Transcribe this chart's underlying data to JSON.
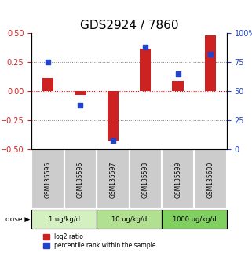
{
  "title": "GDS2924 / 7860",
  "samples": [
    "GSM135595",
    "GSM135596",
    "GSM135597",
    "GSM135598",
    "GSM135599",
    "GSM135600"
  ],
  "log2_ratio": [
    0.12,
    -0.03,
    -0.42,
    0.37,
    0.09,
    0.48
  ],
  "percentile_rank": [
    75,
    38,
    8,
    88,
    65,
    82
  ],
  "dose_groups": [
    {
      "label": "1 ug/kg/d",
      "samples": [
        0,
        1
      ],
      "color": "#d4f0c0"
    },
    {
      "label": "10 ug/kg/d",
      "samples": [
        2,
        3
      ],
      "color": "#b0e090"
    },
    {
      "label": "1000 ug/kg/d",
      "samples": [
        4,
        5
      ],
      "color": "#80d060"
    }
  ],
  "bar_color_red": "#cc2222",
  "bar_color_blue": "#2244cc",
  "ylim_left": [
    -0.5,
    0.5
  ],
  "ylim_right": [
    0,
    100
  ],
  "yticks_left": [
    -0.5,
    -0.25,
    0.0,
    0.25,
    0.5
  ],
  "yticks_right": [
    0,
    25,
    50,
    75,
    100
  ],
  "ytick_labels_right": [
    "0",
    "25",
    "50",
    "75",
    "100%"
  ],
  "hlines": [
    0.25,
    0.0,
    -0.25
  ],
  "title_fontsize": 11,
  "bar_width": 0.35
}
